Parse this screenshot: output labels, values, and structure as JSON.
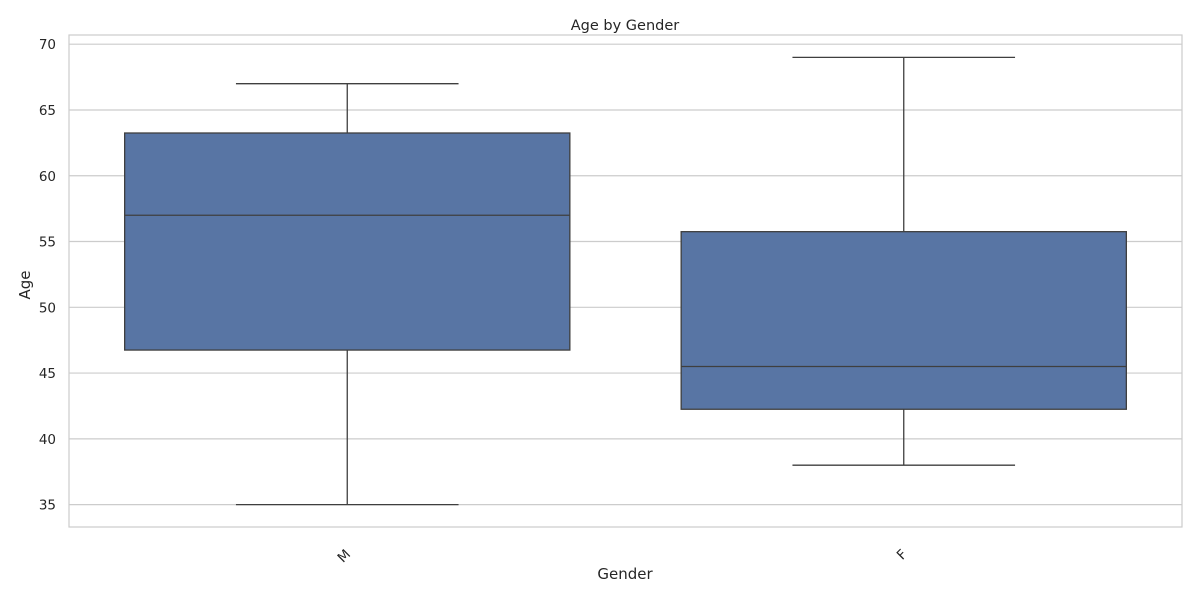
{
  "chart_data": {
    "type": "box",
    "title": "Age by Gender",
    "xlabel": "Gender",
    "ylabel": "Age",
    "categories": [
      "M",
      "F"
    ],
    "series": [
      {
        "category": "M",
        "min": 35,
        "q1": 46.75,
        "median": 57,
        "q3": 63.25,
        "max": 67
      },
      {
        "category": "F",
        "min": 38,
        "q1": 42.25,
        "median": 45.5,
        "q3": 55.75,
        "max": 69
      }
    ],
    "ylim": [
      33.3,
      70.7
    ],
    "yticks": [
      35,
      40,
      45,
      50,
      55,
      60,
      65,
      70
    ],
    "grid": true,
    "x_tick_rotation": -45
  },
  "colors": {
    "box_fill": "#5875a4",
    "line": "#3f3f3f",
    "grid": "#cccccc",
    "spine": "#cccccc",
    "text": "#262626"
  }
}
